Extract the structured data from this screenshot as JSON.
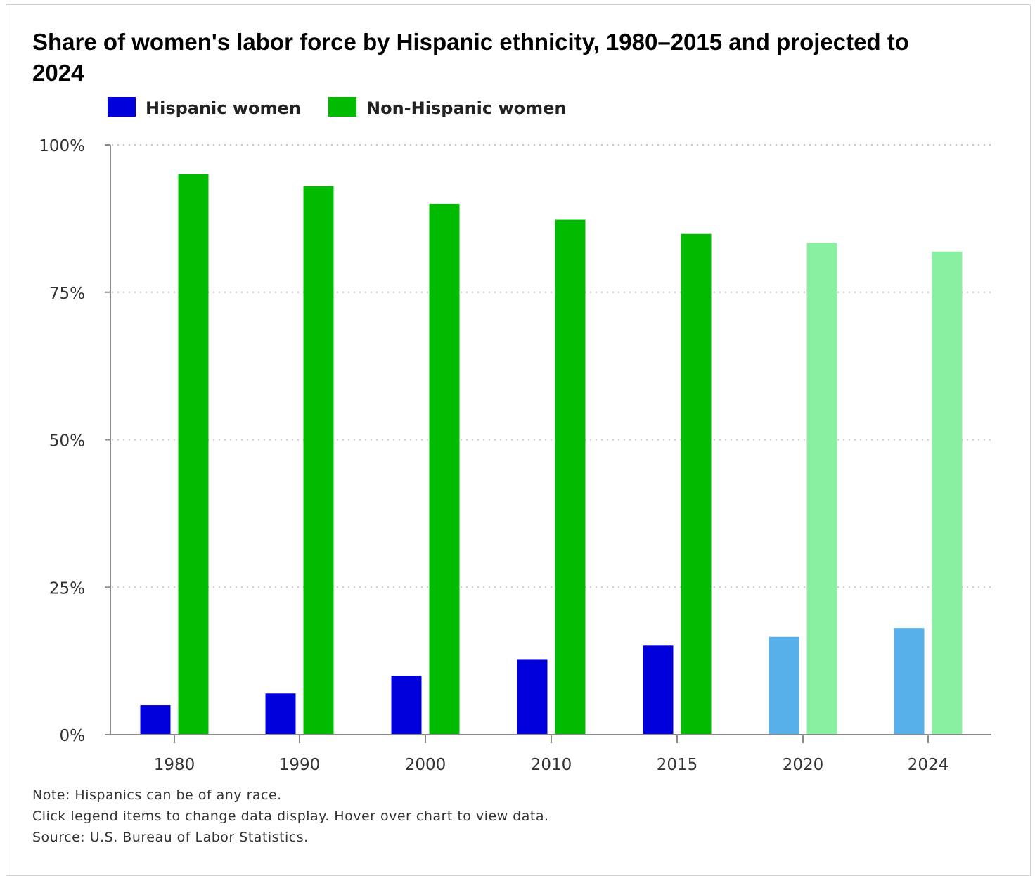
{
  "chart_data": {
    "type": "bar",
    "title": "Share of women's labor force by Hispanic ethnicity, 1980–2015 and projected to 2024",
    "categories": [
      "1980",
      "1990",
      "2000",
      "2010",
      "2015",
      "2020",
      "2024"
    ],
    "series": [
      {
        "name": "Hispanic women",
        "color": "#0000dd",
        "projected_color": "#58b0ea",
        "values": [
          5.0,
          7.0,
          10.0,
          12.7,
          15.1,
          16.6,
          18.1
        ]
      },
      {
        "name": "Non-Hispanic women",
        "color": "#00bb00",
        "projected_color": "#88f0a0",
        "values": [
          95.0,
          93.0,
          90.0,
          87.3,
          84.9,
          83.4,
          81.9
        ]
      }
    ],
    "projected_categories": [
      "2020",
      "2024"
    ],
    "ylim": [
      0,
      100
    ],
    "yticks": [
      0,
      25,
      50,
      75,
      100
    ],
    "ytick_labels": [
      "0%",
      "25%",
      "50%",
      "75%",
      "100%"
    ],
    "grid": "horizontal-dotted",
    "legend_position": "top-left"
  },
  "notes": [
    "Note: Hispanics can be of any race.",
    "Click legend items to change data display. Hover over chart to view data.",
    "Source: U.S. Bureau of Labor Statistics."
  ]
}
